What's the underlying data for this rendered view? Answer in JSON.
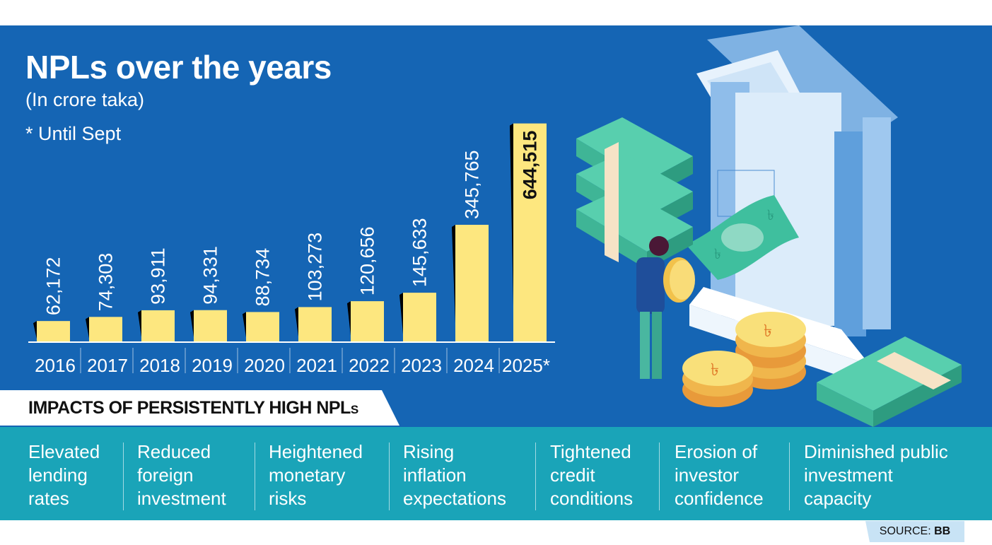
{
  "header": {
    "title": "NPLs over the years",
    "subtitle": "(In crore taka)",
    "note": "* Until Sept"
  },
  "colors": {
    "background_panel": "#1565b4",
    "bar_fill": "#fde77f",
    "bar_shadow": "#000000",
    "impacts_band": "#1aa4b8",
    "source_tag": "#c8e3f5",
    "text_light": "#ffffff"
  },
  "chart_data": {
    "type": "bar",
    "title": "NPLs over the years",
    "subtitle": "(In crore taka)",
    "annotation": "* Until Sept",
    "xlabel": "",
    "ylabel": "",
    "categories": [
      "2016",
      "2017",
      "2018",
      "2019",
      "2020",
      "2021",
      "2022",
      "2023",
      "2024",
      "2025*"
    ],
    "values": [
      62172,
      74303,
      93911,
      94331,
      88734,
      103273,
      120656,
      145633,
      345765,
      644515
    ],
    "value_labels": [
      "62,172",
      "74,303",
      "93,911",
      "94,331",
      "88,734",
      "103,273",
      "120,656",
      "145,633",
      "345,765",
      "644,515"
    ],
    "ylim": [
      0,
      650000
    ],
    "grid": false,
    "legend": "none",
    "highlight_last": true
  },
  "impacts": {
    "heading_main": "IMPACTS OF PERSISTENTLY HIGH NPL",
    "heading_suffix": "S",
    "items": [
      "Elevated\nlending\nrates",
      "Reduced\nforeign\ninvestment",
      "Heightened\nmonetary\nrisks",
      "Rising\ninflation\nexpectations",
      "Tightened\ncredit\nconditions",
      "Erosion of\ninvestor\nconfidence",
      "Diminished public\ninvestment\ncapacity"
    ]
  },
  "source": {
    "label": "SOURCE:",
    "value": "BB"
  },
  "illustration": {
    "icons": [
      "bank-building-icon",
      "taka-banknote-stack-icon",
      "taka-coin-icon",
      "person-holding-coin-icon"
    ]
  }
}
